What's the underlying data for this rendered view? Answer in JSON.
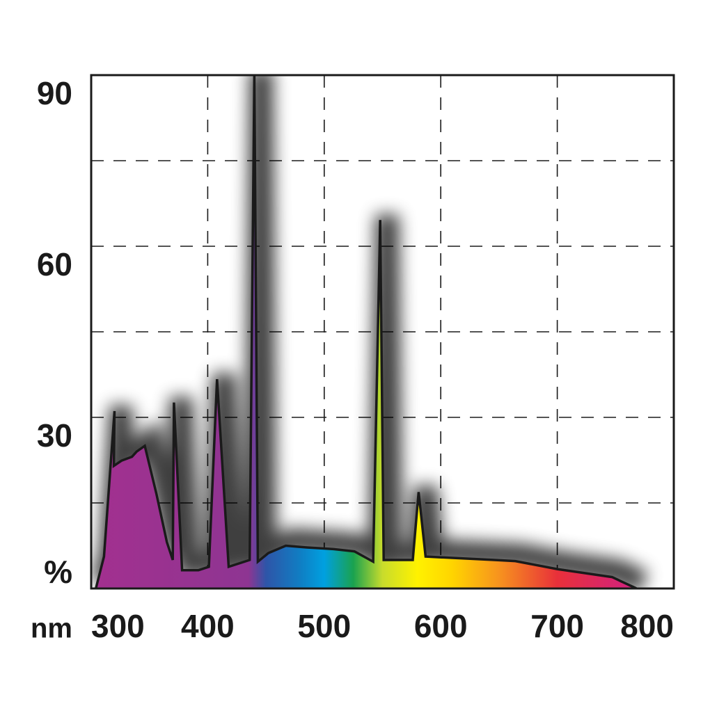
{
  "chart_data": {
    "type": "area",
    "x_label": "nm",
    "y_label": "%",
    "x": [
      304,
      311,
      320,
      319.5,
      326,
      335,
      339,
      346,
      356,
      365,
      370,
      371,
      378,
      392,
      401,
      408,
      418,
      436,
      440,
      443,
      452,
      467,
      485,
      508,
      526,
      542,
      548,
      551,
      576,
      581,
      587,
      616,
      646,
      664,
      700,
      747,
      768
    ],
    "series": [
      {
        "color": "#1a1a1a",
        "values": [
          0,
          5.6,
          31.1,
          21.5,
          22.4,
          23.1,
          24,
          25,
          16.6,
          8.1,
          5,
          32.6,
          3.2,
          3.2,
          3.8,
          36.7,
          3.8,
          5,
          90,
          4.7,
          6.2,
          7.5,
          7.2,
          6.9,
          6.5,
          4.7,
          64.6,
          5,
          5,
          16.9,
          5.6,
          5.3,
          5,
          4.8,
          3.4,
          2,
          0
        ]
      }
    ],
    "xlim": [
      300,
      800
    ],
    "xticks": [
      300,
      400,
      500,
      600,
      700,
      800
    ],
    "ylim": [
      0,
      90
    ],
    "yticks": [
      30,
      60,
      90
    ],
    "ygrid": [
      15,
      30,
      45,
      60,
      75
    ],
    "grid": true
  }
}
